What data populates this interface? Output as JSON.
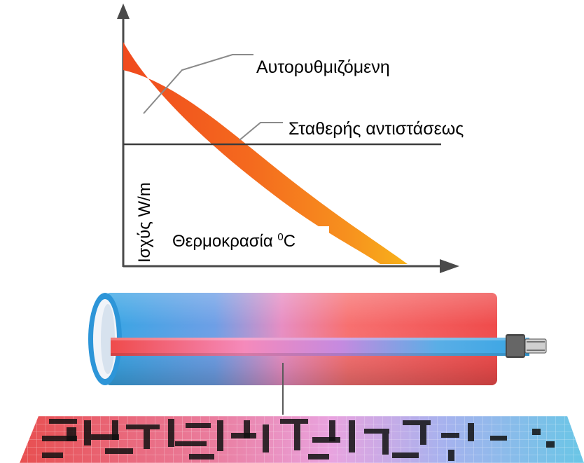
{
  "diagram": {
    "labels": {
      "self_regulating": "Αυτορυθμιζόμενη",
      "constant_resistance": "Σταθερής αντιστάσεως",
      "y_axis": "Ισχύς W/m",
      "x_axis_text": "Θερμοκρασία ",
      "x_axis_sup": "0",
      "x_axis_unit": "C"
    },
    "colors": {
      "axis": "#4a4a4a",
      "constant_line": "#3c3c3c",
      "curve_hot": "#f04a1e",
      "curve_warm": "#f7921e",
      "curve_end": "#f7b21a",
      "pipe_blue": "#36a5e4",
      "pipe_pink": "#e78ec3",
      "pipe_red": "#ef4b4b",
      "matrix_red": "#e84f50",
      "matrix_pink": "#e9a3df",
      "matrix_cyan": "#69c6e6"
    }
  }
}
